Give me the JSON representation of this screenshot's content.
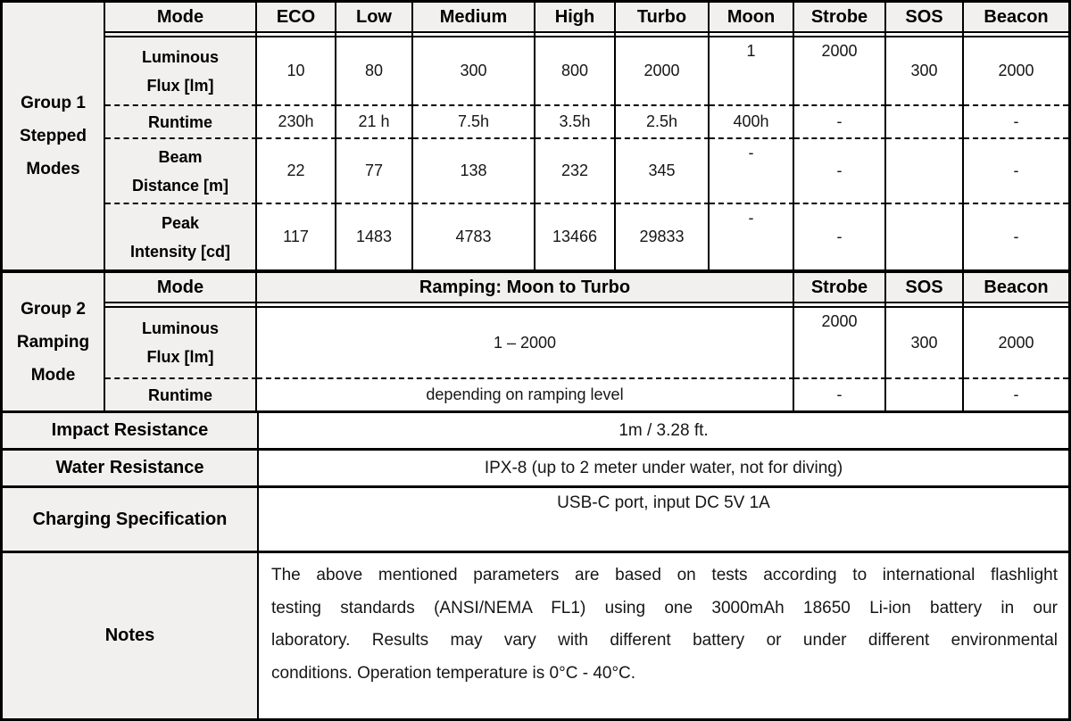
{
  "group1": {
    "label": "Group 1 Stepped Modes",
    "label_lines": [
      "Group 1",
      "Stepped",
      "Modes"
    ],
    "mode_header": "Mode",
    "headers": [
      "ECO",
      "Low",
      "Medium",
      "High",
      "Turbo",
      "Moon",
      "Strobe",
      "SOS",
      "Beacon"
    ],
    "rows": [
      {
        "label": "Luminous Flux [lm]",
        "label_lines": [
          "Luminous",
          "Flux [lm]"
        ],
        "values": [
          "10",
          "80",
          "300",
          "800",
          "2000",
          "1",
          "2000",
          "300",
          "2000"
        ]
      },
      {
        "label": "Runtime",
        "label_lines": [
          "Runtime"
        ],
        "values": [
          "230h",
          "21 h",
          "7.5h",
          "3.5h",
          "2.5h",
          "400h",
          "-",
          "",
          "-"
        ]
      },
      {
        "label": "Beam Distance [m]",
        "label_lines": [
          "Beam",
          "Distance [m]"
        ],
        "values": [
          "22",
          "77",
          "138",
          "232",
          "345",
          "-",
          "-",
          "",
          "-"
        ]
      },
      {
        "label": "Peak Intensity [cd]",
        "label_lines": [
          "Peak",
          "Intensity [cd]"
        ],
        "values": [
          "117",
          "1483",
          "4783",
          "13466",
          "29833",
          "-",
          "-",
          "",
          "-"
        ]
      }
    ]
  },
  "group2": {
    "label": "Group 2 Ramping Mode",
    "label_lines": [
      "Group 2",
      "Ramping",
      "Mode"
    ],
    "mode_header": "Mode",
    "ramping_header": "Ramping: Moon to Turbo",
    "headers": [
      "Strobe",
      "SOS",
      "Beacon"
    ],
    "rows": [
      {
        "label": "Luminous Flux [lm]",
        "label_lines": [
          "Luminous",
          "Flux [lm]"
        ],
        "ramping_value": "1 – 2000",
        "values": [
          "2000",
          "300",
          "2000"
        ]
      },
      {
        "label": "Runtime",
        "label_lines": [
          "Runtime"
        ],
        "ramping_value": "depending on ramping level",
        "values": [
          "-",
          "",
          "-"
        ]
      }
    ]
  },
  "specs": [
    {
      "label": "Impact Resistance",
      "value": "1m / 3.28 ft."
    },
    {
      "label": "Water Resistance",
      "value": "IPX-8 (up to 2 meter under water, not for diving)"
    },
    {
      "label": "Charging Specification",
      "value": "USB-C port, input DC 5V 1A"
    },
    {
      "label": "Notes",
      "lines": [
        "The above mentioned parameters are based on tests according to international flashlight",
        "testing standards (ANSI/NEMA FL1) using one 3000mAh 18650 Li-ion battery in our",
        "laboratory. Results may vary with different battery or under different environmental",
        "conditions. Operation temperature is 0°C - 40°C."
      ]
    }
  ],
  "colors": {
    "header_bg": "#f1f0ef",
    "border": "#000000",
    "text": "#161616"
  }
}
